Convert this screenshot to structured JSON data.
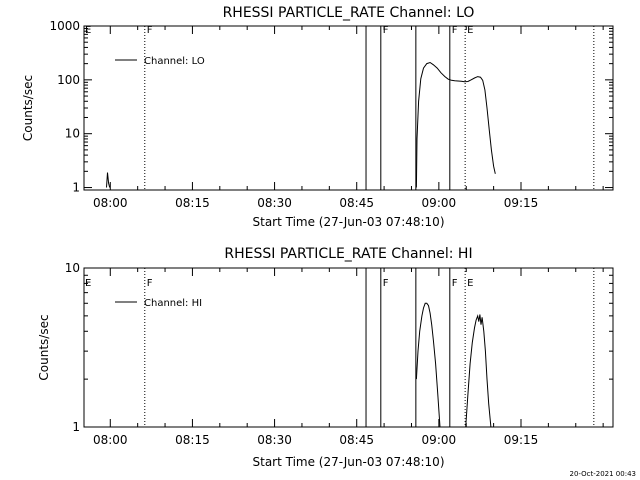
{
  "footer": {
    "timestamp": "20-Oct-2021 00:43"
  },
  "chart_data": [
    {
      "type": "line",
      "title": "RHESSI PARTICLE_RATE Channel: LO",
      "xlabel": "Start Time (27-Jun-03 07:48:10)",
      "ylabel": "Counts/sec",
      "yscale": "log",
      "ylim": [
        0.9,
        1000
      ],
      "xlim_minutes": [
        7.2,
        103.8
      ],
      "xticks": [
        "08:00",
        "08:15",
        "08:30",
        "08:45",
        "09:00",
        "09:15"
      ],
      "xtick_minutes": [
        12,
        27,
        42,
        57,
        72,
        87
      ],
      "yticks": [
        "1",
        "10",
        "100",
        "1000"
      ],
      "ytick_values": [
        1,
        10,
        100,
        1000
      ],
      "legend": {
        "label": "Channel: LO",
        "position": "top-left"
      },
      "flag_lines": [
        {
          "minute": 18.3,
          "style": "dotted",
          "label": "F"
        },
        {
          "minute": 58.7,
          "style": "solid",
          "label": ""
        },
        {
          "minute": 61.4,
          "style": "solid",
          "label": "F"
        },
        {
          "minute": 67.8,
          "style": "solid",
          "label": ""
        },
        {
          "minute": 74.0,
          "style": "solid",
          "label": "F"
        },
        {
          "minute": 76.8,
          "style": "dotted",
          "label": "E"
        },
        {
          "minute": 100.3,
          "style": "dotted",
          "label": ""
        }
      ],
      "edge_labels": [
        {
          "label": "E",
          "side": "left"
        }
      ],
      "series": [
        {
          "name": "Channel: LO",
          "segments": [
            {
              "x": [
                11.3,
                11.5,
                11.7,
                11.9
              ],
              "y": [
                1.0,
                1.9,
                1.2,
                1.0
              ]
            },
            {
              "x": [
                67.9,
                68.0,
                68.3,
                68.7,
                69.2,
                69.8,
                70.4,
                71.0,
                71.7,
                72.4,
                73.1,
                73.7,
                74.3,
                74.9,
                75.5,
                76.1,
                76.7,
                77.3,
                77.9,
                78.5,
                79.1,
                79.6,
                80.0,
                80.4,
                80.8,
                81.2,
                81.6,
                82.0,
                82.3
              ],
              "y": [
                1.0,
                8.0,
                40.0,
                105.0,
                165.0,
                200.0,
                210.0,
                190.0,
                165.0,
                135.0,
                115.0,
                103.0,
                98.0,
                96.0,
                95.0,
                94.0,
                92.0,
                93.0,
                100.0,
                108.0,
                115.0,
                112.0,
                98.0,
                65.0,
                30.0,
                12.0,
                5.0,
                2.5,
                1.8
              ]
            }
          ]
        }
      ]
    },
    {
      "type": "line",
      "title": "RHESSI PARTICLE_RATE Channel: HI",
      "xlabel": "Start Time (27-Jun-03 07:48:10)",
      "ylabel": "Counts/sec",
      "yscale": "log",
      "ylim": [
        1,
        10
      ],
      "xlim_minutes": [
        7.2,
        103.8
      ],
      "xticks": [
        "08:00",
        "08:15",
        "08:30",
        "08:45",
        "09:00",
        "09:15"
      ],
      "xtick_minutes": [
        12,
        27,
        42,
        57,
        72,
        87
      ],
      "yticks": [
        "1",
        "10"
      ],
      "ytick_values": [
        1,
        10
      ],
      "legend": {
        "label": "Channel: HI",
        "position": "top-left"
      },
      "flag_lines": [
        {
          "minute": 18.3,
          "style": "dotted",
          "label": "F"
        },
        {
          "minute": 58.7,
          "style": "solid",
          "label": ""
        },
        {
          "minute": 61.4,
          "style": "solid",
          "label": "F"
        },
        {
          "minute": 67.8,
          "style": "solid",
          "label": ""
        },
        {
          "minute": 74.0,
          "style": "solid",
          "label": "F"
        },
        {
          "minute": 76.8,
          "style": "dotted",
          "label": "E"
        },
        {
          "minute": 100.3,
          "style": "dotted",
          "label": ""
        }
      ],
      "edge_labels": [
        {
          "label": "E",
          "side": "left"
        }
      ],
      "series": [
        {
          "name": "Channel: HI",
          "segments": [
            {
              "x": [
                67.9,
                68.2,
                68.5,
                68.9,
                69.2,
                69.5,
                69.8,
                70.1,
                70.4,
                70.7,
                71.0,
                71.4,
                71.8,
                72.2
              ],
              "y": [
                2.0,
                3.0,
                4.0,
                5.0,
                5.6,
                6.0,
                6.0,
                5.8,
                5.2,
                4.4,
                3.5,
                2.5,
                1.6,
                1.0
              ]
            },
            {
              "x": [
                76.9,
                77.3,
                77.7,
                78.1,
                78.5,
                78.8,
                79.1,
                79.3,
                79.5,
                79.7,
                79.9,
                80.2,
                80.5,
                80.8,
                81.1,
                81.5
              ],
              "y": [
                1.0,
                1.6,
                2.5,
                3.4,
                4.2,
                4.7,
                5.0,
                4.6,
                5.1,
                4.4,
                4.9,
                4.0,
                3.0,
                2.0,
                1.4,
                1.0
              ]
            }
          ]
        }
      ]
    }
  ]
}
